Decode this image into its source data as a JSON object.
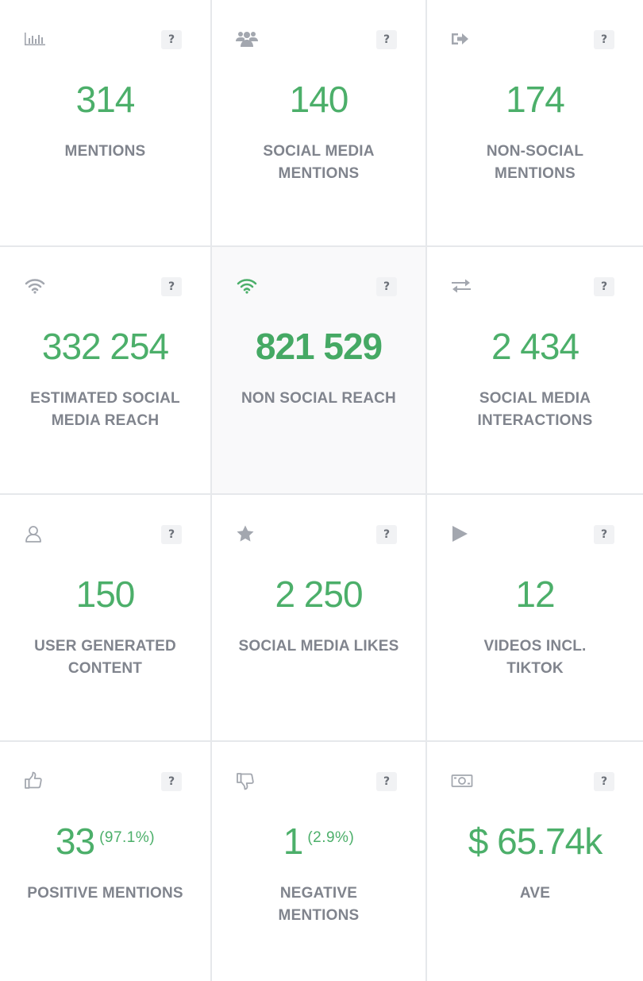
{
  "help_label": "?",
  "colors": {
    "accent_green": "#4caf6a",
    "label_gray": "#80848d",
    "icon_gray": "#a3a7af"
  },
  "cards": [
    {
      "icon": "bar-chart-icon",
      "value": "314",
      "pct": "",
      "label": "MENTIONS"
    },
    {
      "icon": "users-icon",
      "value": "140",
      "pct": "",
      "label": "SOCIAL MEDIA\nMENTIONS"
    },
    {
      "icon": "sign-out-icon",
      "value": "174",
      "pct": "",
      "label": "NON-SOCIAL\nMENTIONS"
    },
    {
      "icon": "wifi-icon",
      "value": "332 254",
      "pct": "",
      "label": "ESTIMATED SOCIAL\nMEDIA REACH"
    },
    {
      "icon": "wifi-icon",
      "value": "821 529",
      "pct": "",
      "label": "NON SOCIAL REACH"
    },
    {
      "icon": "exchange-icon",
      "value": "2 434",
      "pct": "",
      "label": "SOCIAL MEDIA\nINTERACTIONS"
    },
    {
      "icon": "user-icon",
      "value": "150",
      "pct": "",
      "label": "USER GENERATED\nCONTENT"
    },
    {
      "icon": "star-icon",
      "value": "2 250",
      "pct": "",
      "label": "SOCIAL MEDIA LIKES"
    },
    {
      "icon": "play-icon",
      "value": "12",
      "pct": "",
      "label": "VIDEOS INCL.\nTIKTOK"
    },
    {
      "icon": "thumbs-up-icon",
      "value": "33",
      "pct": "(97.1%)",
      "label": "POSITIVE MENTIONS"
    },
    {
      "icon": "thumbs-down-icon",
      "value": "1",
      "pct": "(2.9%)",
      "label": "NEGATIVE\nMENTIONS"
    },
    {
      "icon": "money-icon",
      "value": "$ 65.74k",
      "pct": "",
      "label": "AVE"
    }
  ]
}
